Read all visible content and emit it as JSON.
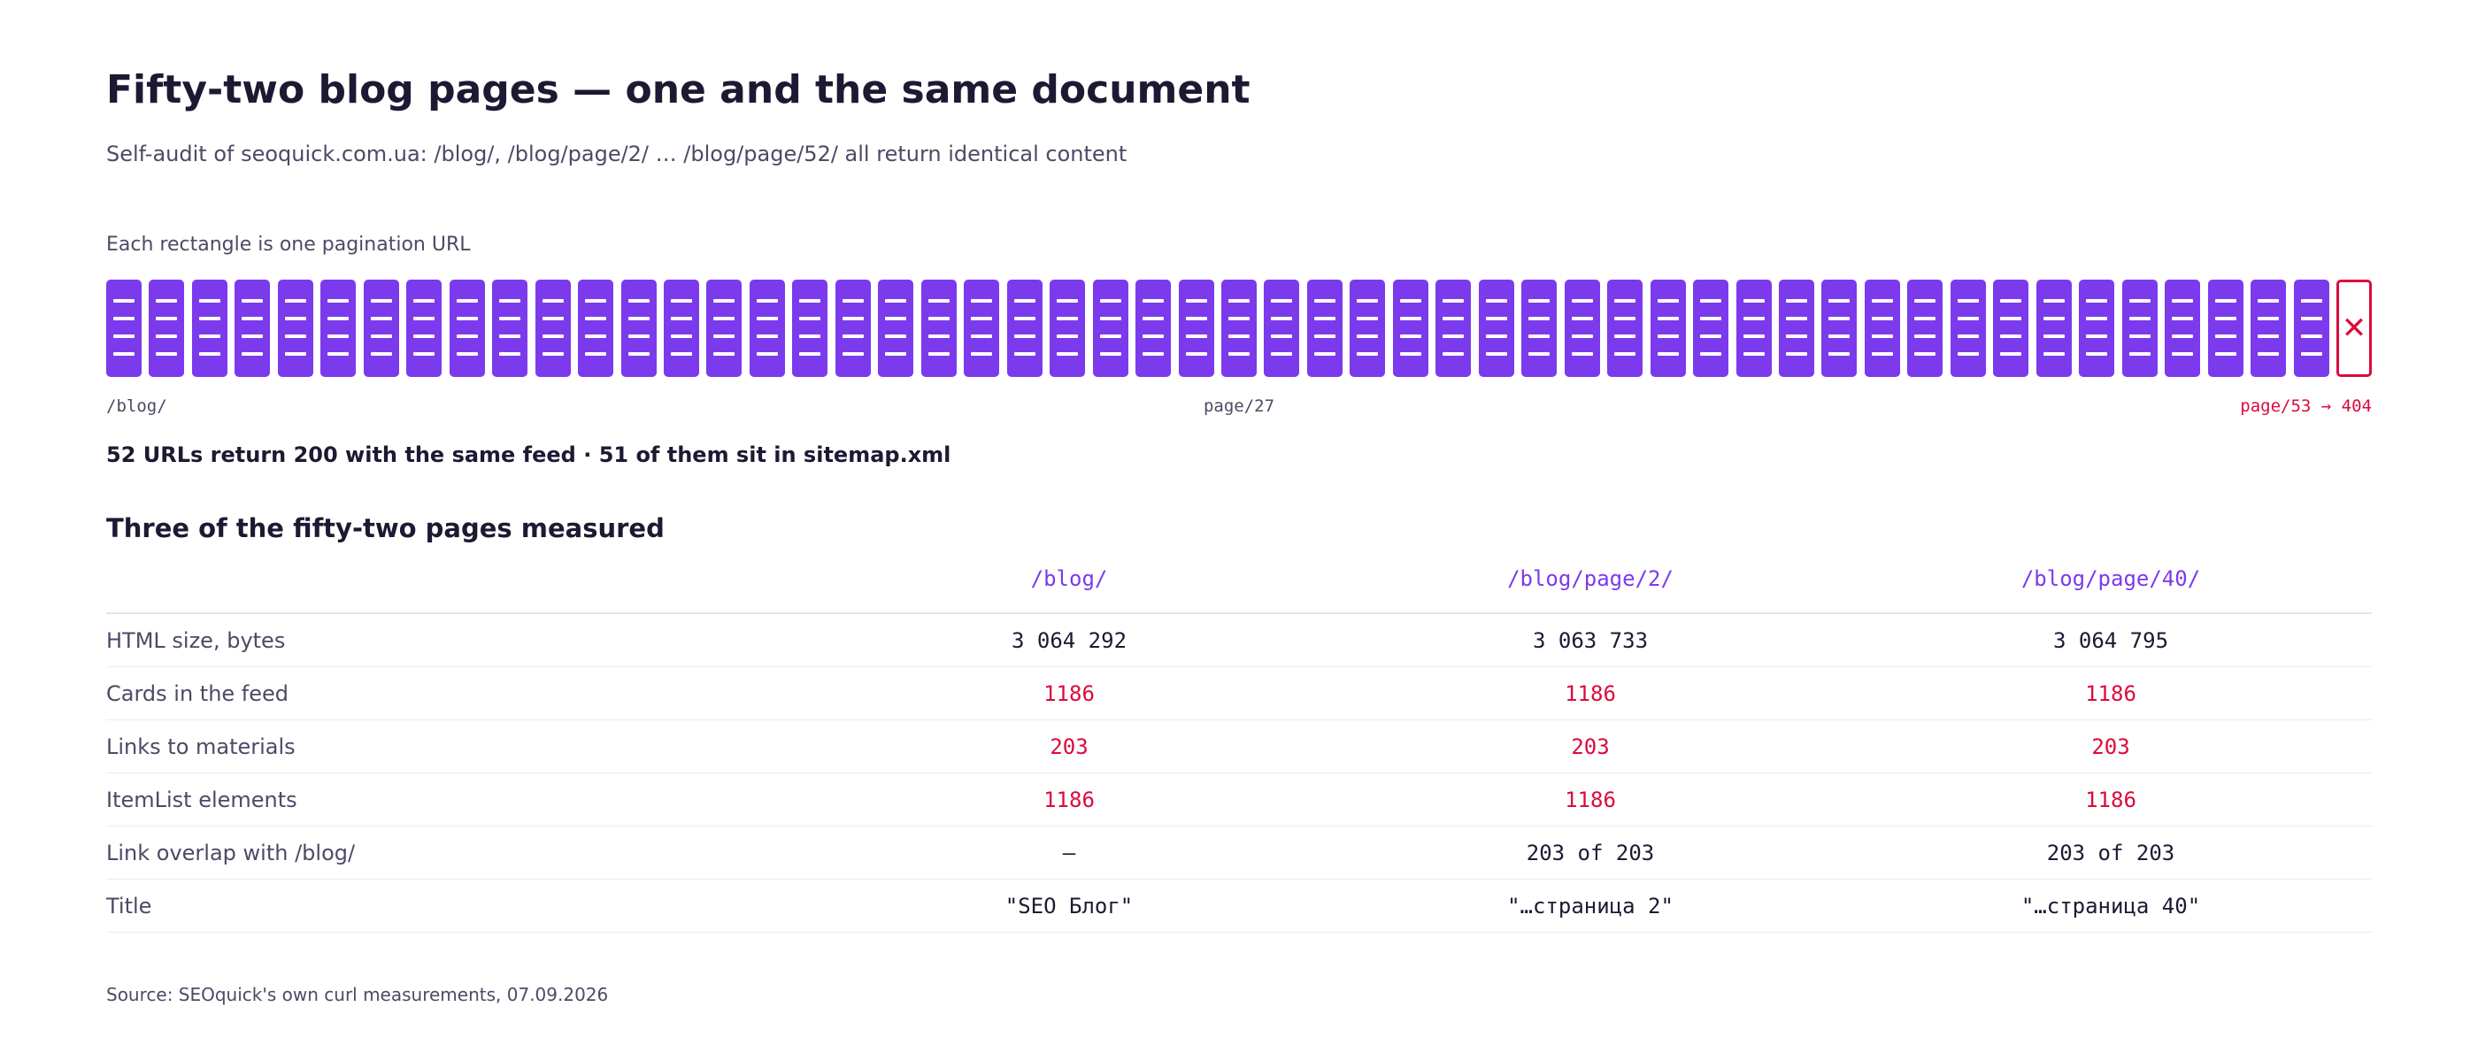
{
  "title": "Fifty-two blog pages — one and the same document",
  "subtitle": "Self-audit of seoquick.com.ua: /blog/, /blog/page/2/ … /blog/page/52/ all return identical content",
  "strip": {
    "label": "Each rectangle is one pagination URL",
    "pages_ok": 52,
    "pages_missing": 1,
    "ok_color": "#7c3aed",
    "missing_color": "#dc0a3c",
    "missing_icon": "close-icon",
    "tick_left": "/blog/",
    "tick_mid": "page/27",
    "tick_right": "page/53 → 404"
  },
  "summary": "52 URLs return 200 with the same feed · 51 of them sit in sitemap.xml",
  "table": {
    "title": "Three of the fifty-two pages measured",
    "columns": [
      "/blog/",
      "/blog/page/2/",
      "/blog/page/40/"
    ],
    "rows": [
      {
        "label": "HTML size, bytes",
        "values": [
          "3 064 292",
          "3 063 733",
          "3 064 795"
        ],
        "alert": false
      },
      {
        "label": "Cards in the feed",
        "values": [
          "1186",
          "1186",
          "1186"
        ],
        "alert": true
      },
      {
        "label": "Links to materials",
        "values": [
          "203",
          "203",
          "203"
        ],
        "alert": true
      },
      {
        "label": "ItemList elements",
        "values": [
          "1186",
          "1186",
          "1186"
        ],
        "alert": true
      },
      {
        "label": "Link overlap with /blog/",
        "values": [
          "—",
          "203 of 203",
          "203 of 203"
        ],
        "alert": false
      },
      {
        "label": "Title",
        "values": [
          "\"SEO Блог\"",
          "\"…страница 2\"",
          "\"…страница 40\""
        ],
        "alert": false
      }
    ]
  },
  "source": "Source: SEOquick's own curl measurements, 07.09.2026"
}
